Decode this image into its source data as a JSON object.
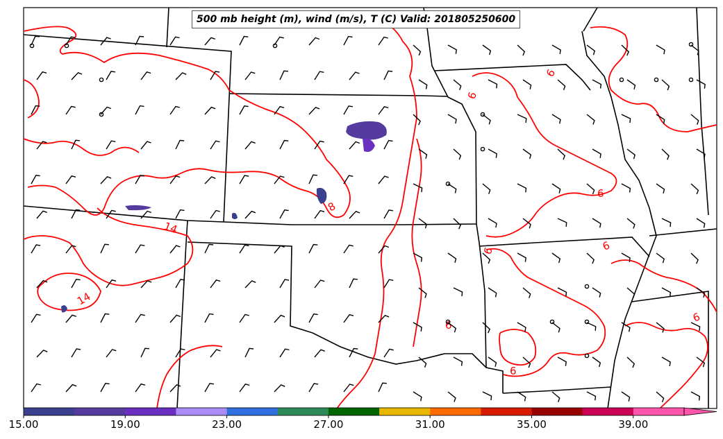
{
  "title": "500 mb height (m), wind (m/s), T (C) Valid: 201805250600",
  "colorbar": {
    "tick_labels": [
      "15.00",
      "19.00",
      "23.00",
      "27.00",
      "31.00",
      "35.00",
      "39.00"
    ],
    "colors": [
      "#3a3f8f",
      "#553b9e",
      "#6a2fc0",
      "#a98cf5",
      "#2f6fe0",
      "#2e8b57",
      "#006400",
      "#e8b800",
      "#ff6a00",
      "#d71a00",
      "#990000",
      "#cc0055",
      "#ff55aa"
    ],
    "extend": "max"
  },
  "contour_labels": [
    "6",
    "6",
    "6",
    "6",
    "6",
    "6",
    "6",
    "6",
    "14",
    "14",
    "8"
  ],
  "temperature_line_color": "#ff0000",
  "border_color": "#000000"
}
